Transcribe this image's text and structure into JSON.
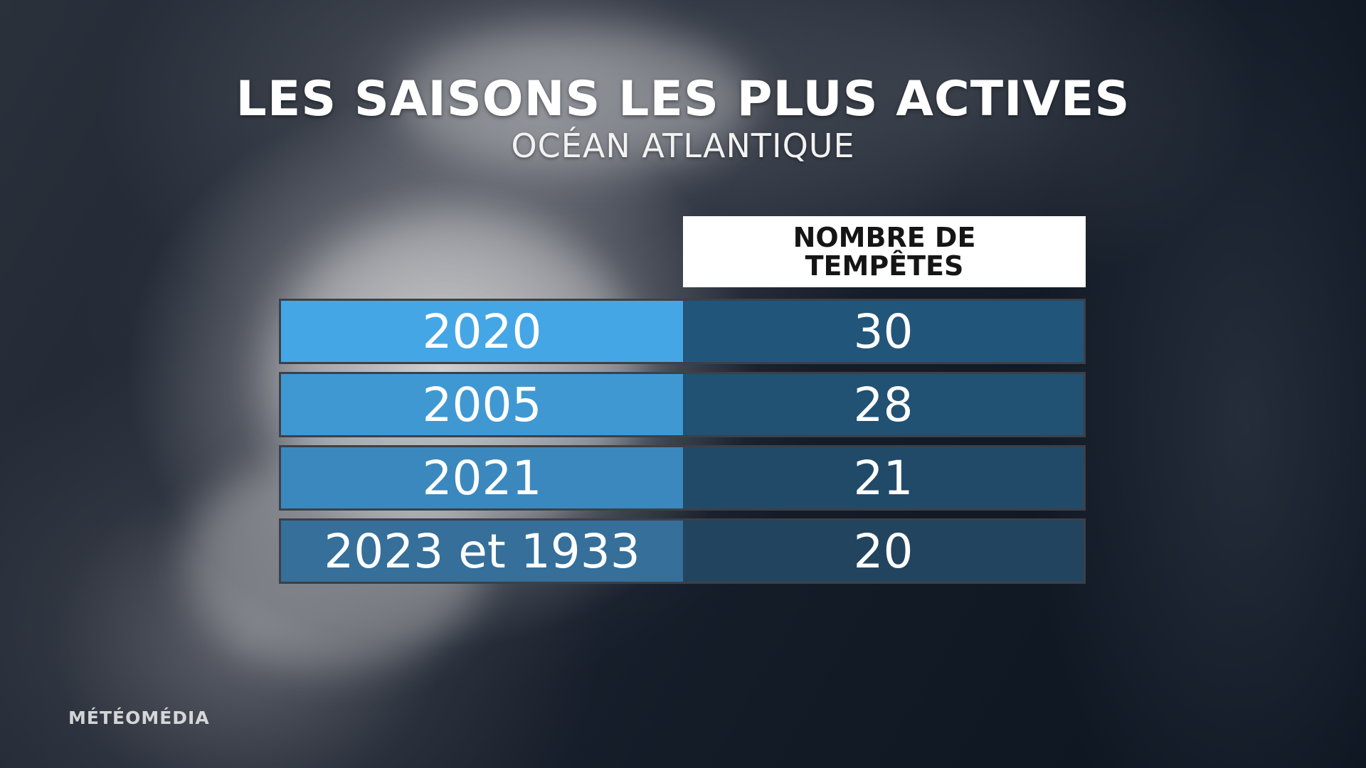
{
  "title": "LES SAISONS LES PLUS ACTIVES",
  "subtitle": "OCÉAN ATLANTIQUE",
  "logo": "MÉTÉOMÉDIA",
  "colors": {
    "year_cells": [
      "#45a6e6",
      "#3f98d2",
      "#3a88be",
      "#356f9a"
    ],
    "count_cells": [
      "#22557a",
      "#215173",
      "#214a69",
      "#23445e"
    ]
  },
  "chart_data": {
    "type": "table",
    "title": "LES SAISONS LES PLUS ACTIVES",
    "subtitle": "OCÉAN ATLANTIQUE",
    "columns": [
      "",
      "NOMBRE DE TEMPÊTES"
    ],
    "header_lines": [
      "NOMBRE DE",
      "TEMPÊTES"
    ],
    "rows": [
      {
        "season": "2020",
        "storms": "30"
      },
      {
        "season": "2005",
        "storms": "28"
      },
      {
        "season": "2021",
        "storms": "21"
      },
      {
        "season": "2023 et 1933",
        "storms": "20"
      }
    ]
  }
}
